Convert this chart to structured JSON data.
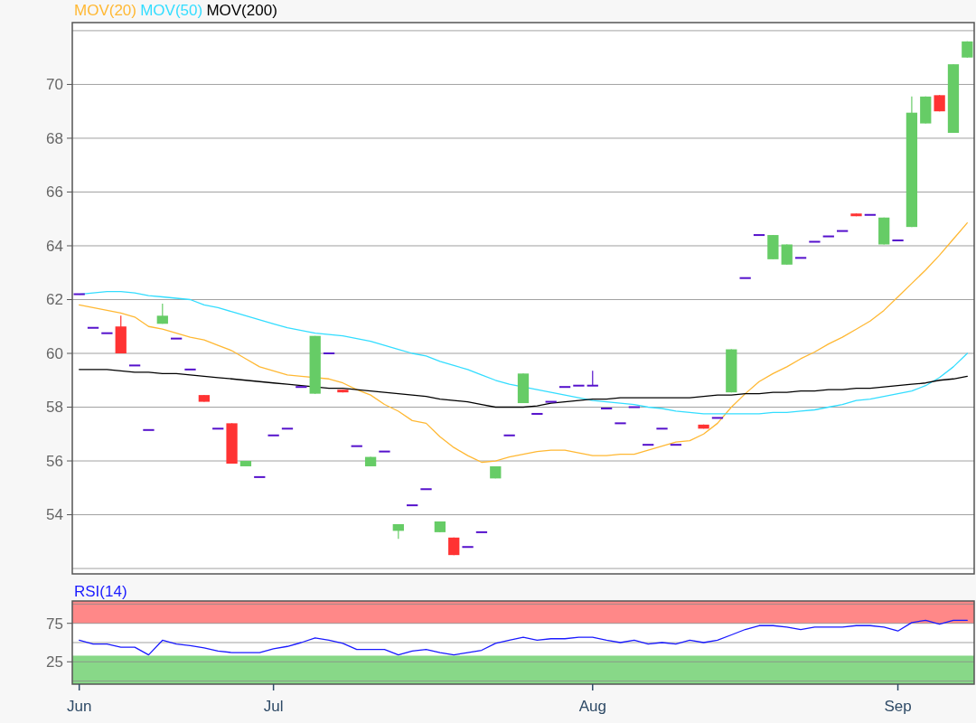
{
  "chart_data": [
    {
      "type": "candlestick",
      "categories": [
        null,
        null,
        null,
        null,
        null,
        null,
        null,
        null,
        null,
        null,
        null,
        null,
        null,
        null,
        null,
        null,
        null,
        null,
        null,
        null,
        null,
        null,
        null,
        null,
        null,
        null,
        null,
        null,
        null,
        null,
        null,
        null,
        null,
        null,
        null,
        null,
        null,
        null,
        null,
        null,
        null,
        null,
        null,
        null,
        null,
        null,
        null,
        null,
        null,
        null,
        null,
        null,
        null,
        null,
        null,
        null,
        null,
        null,
        null,
        null,
        null,
        null,
        null,
        null,
        null
      ],
      "ohlc": [
        [
          62.2,
          62.2,
          62.2,
          62.2
        ],
        [
          60.95,
          60.95,
          60.95,
          60.95
        ],
        [
          60.75,
          60.75,
          60.75,
          60.75
        ],
        [
          61.0,
          61.4,
          60.0,
          60.0
        ],
        [
          59.55,
          59.55,
          59.55,
          59.55
        ],
        [
          57.15,
          57.15,
          57.15,
          57.15
        ],
        [
          61.1,
          61.85,
          61.1,
          61.4
        ],
        [
          60.55,
          60.55,
          60.55,
          60.55
        ],
        [
          59.4,
          59.4,
          59.4,
          59.4
        ],
        [
          58.45,
          58.45,
          58.2,
          58.2
        ],
        [
          57.2,
          57.2,
          57.2,
          57.2
        ],
        [
          57.4,
          57.4,
          55.9,
          55.9
        ],
        [
          55.8,
          56.0,
          55.8,
          56.0
        ],
        [
          55.4,
          55.4,
          55.4,
          55.4
        ],
        [
          56.95,
          56.95,
          56.95,
          56.95
        ],
        [
          57.2,
          57.2,
          57.2,
          57.2
        ],
        [
          58.75,
          58.75,
          58.75,
          58.75
        ],
        [
          58.5,
          60.65,
          58.5,
          60.65
        ],
        [
          60.0,
          60.0,
          60.0,
          60.0
        ],
        [
          58.65,
          58.65,
          58.55,
          58.55
        ],
        [
          56.55,
          56.55,
          56.55,
          56.55
        ],
        [
          55.8,
          56.15,
          55.8,
          56.15
        ],
        [
          56.35,
          56.35,
          56.35,
          56.35
        ],
        [
          53.4,
          53.65,
          53.1,
          53.65
        ],
        [
          54.35,
          54.35,
          54.35,
          54.35
        ],
        [
          54.95,
          54.95,
          54.95,
          54.95
        ],
        [
          53.35,
          53.75,
          53.35,
          53.75
        ],
        [
          53.15,
          53.15,
          52.5,
          52.5
        ],
        [
          52.8,
          52.8,
          52.8,
          52.8
        ],
        [
          53.35,
          53.35,
          53.35,
          53.35
        ],
        [
          55.35,
          55.8,
          55.35,
          55.8
        ],
        [
          56.95,
          56.95,
          56.95,
          56.95
        ],
        [
          58.15,
          59.25,
          58.15,
          59.25
        ],
        [
          57.75,
          57.75,
          57.75,
          57.75
        ],
        [
          58.2,
          58.2,
          58.2,
          58.2
        ],
        [
          58.75,
          58.75,
          58.75,
          58.75
        ],
        [
          58.8,
          58.8,
          58.8,
          58.8
        ],
        [
          58.8,
          59.35,
          58.8,
          58.8
        ],
        [
          57.95,
          57.95,
          57.95,
          57.95
        ],
        [
          57.4,
          57.4,
          57.4,
          57.4
        ],
        [
          58.0,
          58.0,
          58.0,
          58.0
        ],
        [
          56.6,
          56.6,
          56.6,
          56.6
        ],
        [
          57.2,
          57.2,
          57.2,
          57.2
        ],
        [
          56.6,
          56.6,
          56.6,
          56.6
        ],
        null,
        [
          57.35,
          57.35,
          57.2,
          57.2
        ],
        [
          57.6,
          57.6,
          57.6,
          57.6
        ],
        [
          58.55,
          60.15,
          58.55,
          60.15
        ],
        [
          62.8,
          62.8,
          62.8,
          62.8
        ],
        [
          64.4,
          64.4,
          64.4,
          64.4
        ],
        [
          63.5,
          64.4,
          63.5,
          64.4
        ],
        [
          63.3,
          64.05,
          63.3,
          64.05
        ],
        [
          63.55,
          63.55,
          63.55,
          63.55
        ],
        [
          64.15,
          64.15,
          64.15,
          64.15
        ],
        [
          64.35,
          64.35,
          64.35,
          64.35
        ],
        [
          64.55,
          64.55,
          64.55,
          64.55
        ],
        [
          65.2,
          65.2,
          65.1,
          65.1
        ],
        [
          65.15,
          65.15,
          65.15,
          65.15
        ],
        [
          64.05,
          65.05,
          64.05,
          65.05
        ],
        [
          64.2,
          64.2,
          64.2,
          64.2
        ],
        [
          64.7,
          69.55,
          64.7,
          68.95
        ],
        [
          68.55,
          69.55,
          68.55,
          69.55
        ],
        [
          69.6,
          69.6,
          69.0,
          69.0
        ],
        [
          68.2,
          70.75,
          68.2,
          70.75
        ],
        [
          71.0,
          71.6,
          71.0,
          71.6
        ]
      ],
      "colors": [
        "#5511cc",
        "#5511cc",
        "#5511cc",
        "#ff3333",
        "#5511cc",
        "#5511cc",
        "#66cc66",
        "#5511cc",
        "#5511cc",
        "#ff3333",
        "#5511cc",
        "#ff3333",
        "#66cc66",
        "#5511cc",
        "#5511cc",
        "#5511cc",
        "#5511cc",
        "#66cc66",
        "#5511cc",
        "#ff3333",
        "#5511cc",
        "#66cc66",
        "#5511cc",
        "#66cc66",
        "#5511cc",
        "#5511cc",
        "#66cc66",
        "#ff3333",
        "#5511cc",
        "#5511cc",
        "#66cc66",
        "#5511cc",
        "#66cc66",
        "#5511cc",
        "#5511cc",
        "#5511cc",
        "#5511cc",
        "#5511cc",
        "#5511cc",
        "#5511cc",
        "#5511cc",
        "#5511cc",
        "#5511cc",
        "#5511cc",
        null,
        "#ff3333",
        "#5511cc",
        "#66cc66",
        "#5511cc",
        "#5511cc",
        "#66cc66",
        "#66cc66",
        "#5511cc",
        "#5511cc",
        "#5511cc",
        "#5511cc",
        "#ff3333",
        "#5511cc",
        "#66cc66",
        "#5511cc",
        "#66cc66",
        "#66cc66",
        "#ff3333",
        "#66cc66",
        "#66cc66"
      ],
      "series": [
        {
          "type": "line",
          "name": "MOV(20)",
          "color": "#ffb833",
          "values": [
            61.8,
            61.7,
            61.6,
            61.5,
            61.35,
            61.0,
            60.9,
            60.75,
            60.6,
            60.5,
            60.3,
            60.1,
            59.8,
            59.5,
            59.35,
            59.2,
            59.15,
            null,
            59.05,
            58.9,
            58.65,
            58.45,
            58.1,
            57.85,
            57.5,
            57.4,
            56.9,
            56.5,
            56.2,
            55.95,
            56.0,
            56.15,
            56.25,
            56.35,
            56.4,
            56.4,
            56.3,
            56.2,
            56.2,
            56.25,
            56.25,
            56.4,
            56.55,
            56.7,
            56.75,
            57.0,
            57.4,
            58.0,
            58.5,
            58.95,
            59.25,
            59.5,
            59.8,
            60.05,
            60.35,
            60.6,
            60.9,
            61.2,
            61.6,
            62.1,
            62.6,
            63.1,
            63.65,
            64.25,
            64.85
          ]
        },
        {
          "type": "line",
          "name": "MOV(50)",
          "color": "#33ddff",
          "values": [
            62.2,
            62.25,
            62.3,
            62.3,
            62.25,
            62.15,
            62.1,
            62.05,
            62.0,
            61.8,
            61.7,
            61.55,
            61.4,
            61.25,
            61.1,
            60.95,
            60.85,
            60.75,
            60.7,
            60.65,
            60.55,
            60.45,
            60.3,
            60.15,
            60.0,
            59.9,
            59.7,
            59.55,
            59.4,
            59.2,
            59.0,
            58.85,
            58.75,
            58.65,
            58.55,
            58.45,
            58.35,
            58.25,
            58.2,
            58.15,
            58.1,
            58.0,
            57.95,
            57.85,
            57.8,
            57.75,
            57.75,
            57.75,
            57.75,
            57.75,
            57.8,
            57.8,
            57.85,
            57.9,
            58.0,
            58.1,
            58.25,
            58.3,
            58.4,
            58.5,
            58.6,
            58.8,
            59.1,
            59.5,
            60.0
          ]
        },
        {
          "type": "line",
          "name": "MOV(200)",
          "color": "#000000",
          "values": [
            59.4,
            59.4,
            59.4,
            59.35,
            59.3,
            59.3,
            59.25,
            59.25,
            59.2,
            59.15,
            59.1,
            59.05,
            59.0,
            58.95,
            58.9,
            58.85,
            58.8,
            null,
            58.7,
            58.7,
            58.65,
            58.6,
            58.55,
            58.5,
            58.45,
            58.4,
            58.3,
            58.25,
            58.2,
            58.1,
            58.0,
            58.0,
            58.0,
            58.05,
            58.15,
            58.2,
            58.25,
            58.3,
            58.3,
            58.35,
            58.35,
            58.35,
            58.35,
            58.35,
            58.35,
            58.4,
            58.45,
            58.45,
            58.5,
            58.5,
            58.55,
            58.55,
            58.6,
            58.6,
            58.65,
            58.65,
            58.7,
            58.7,
            58.75,
            58.8,
            58.85,
            58.9,
            59.0,
            59.05,
            59.15
          ]
        }
      ],
      "ylim": [
        51.8,
        72.3
      ],
      "yticks": [
        {
          "value": 52,
          "label": null
        },
        54,
        56,
        58,
        60,
        62,
        64,
        66,
        68,
        70,
        {
          "value": 72,
          "label": null
        }
      ],
      "grid": "y",
      "legend": "top left",
      "tick_labels": "y"
    },
    {
      "type": "line",
      "title": "RSI(14)",
      "categories": [
        "Jun",
        null,
        null,
        null,
        null,
        null,
        null,
        null,
        null,
        null,
        null,
        null,
        null,
        null,
        "Jul",
        null,
        null,
        null,
        null,
        null,
        null,
        null,
        null,
        null,
        null,
        null,
        null,
        null,
        null,
        null,
        null,
        null,
        null,
        null,
        null,
        null,
        null,
        "Aug",
        null,
        null,
        null,
        null,
        null,
        null,
        null,
        null,
        null,
        null,
        null,
        null,
        null,
        null,
        null,
        null,
        null,
        null,
        null,
        null,
        null,
        "Sep",
        null,
        null,
        null,
        null,
        null
      ],
      "series": [
        {
          "color": "#1a1aff",
          "values": [
            53,
            48,
            48,
            44,
            44,
            34,
            53,
            48,
            46,
            43,
            39,
            37,
            37,
            37,
            42,
            45,
            50,
            56,
            53,
            49,
            41,
            41,
            41,
            34,
            39,
            41,
            37,
            34,
            37,
            40,
            49,
            53,
            57,
            53,
            55,
            55,
            57,
            57,
            53,
            50,
            53,
            48,
            50,
            48,
            53,
            50,
            53,
            60,
            67,
            72,
            72,
            70,
            67,
            70,
            70,
            70,
            72,
            72,
            70,
            65,
            76,
            79,
            74,
            79,
            79
          ]
        }
      ],
      "ylim": [
        -4,
        104
      ],
      "yticks": [
        {
          "value": 0,
          "label": null
        },
        25,
        {
          "value": 50,
          "label": null
        },
        75,
        {
          "value": 100,
          "label": null
        }
      ],
      "grid": "y",
      "bands": [
        {
          "axis": "y",
          "from": 75,
          "to": 104,
          "color": "#ff8888"
        },
        {
          "axis": "y",
          "from": -4,
          "to": 33,
          "color": "#88d888"
        }
      ]
    }
  ]
}
